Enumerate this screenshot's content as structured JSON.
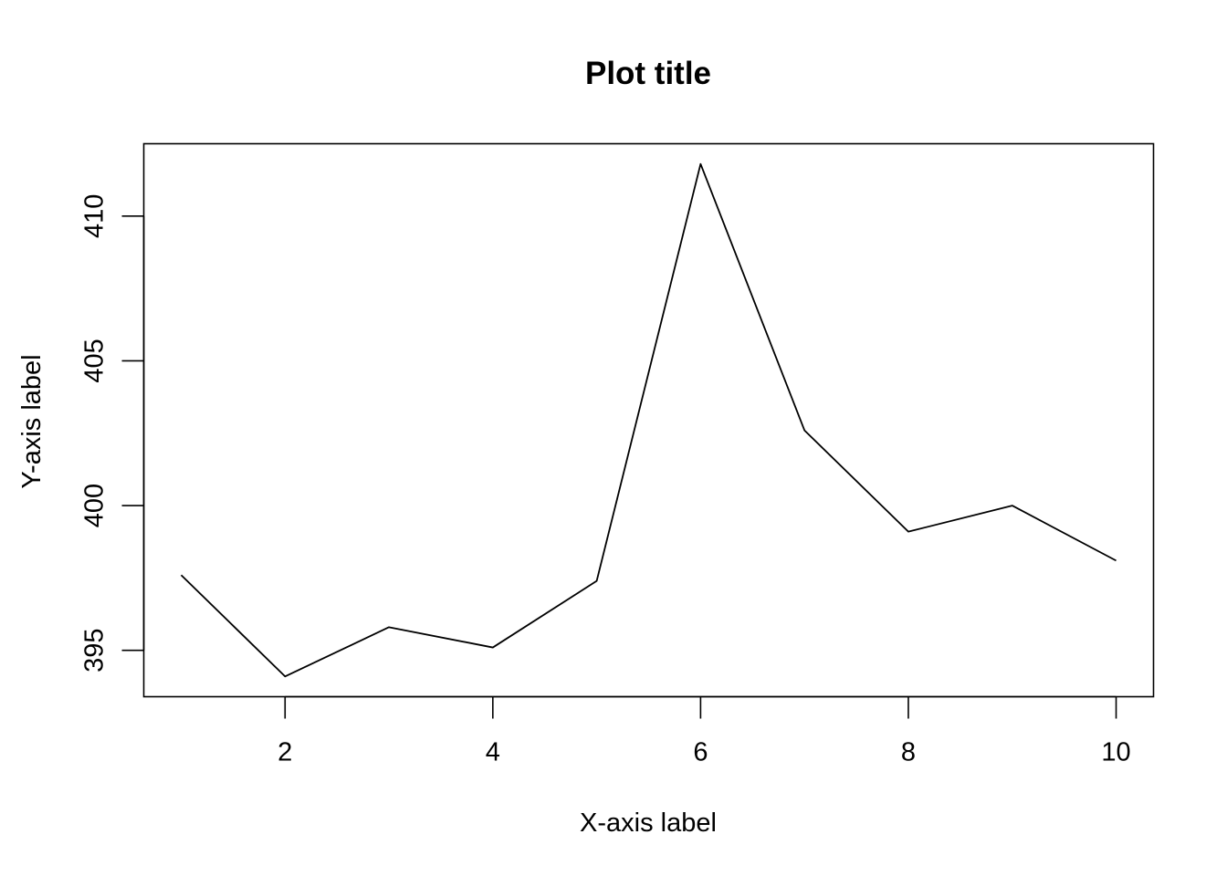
{
  "chart_data": {
    "type": "line",
    "title": "Plot title",
    "xlabel": "X-axis label",
    "ylabel": "Y-axis label",
    "x": [
      1,
      2,
      3,
      4,
      5,
      6,
      7,
      8,
      9,
      10
    ],
    "series": [
      {
        "values": [
          397.6,
          394.1,
          395.8,
          395.1,
          397.4,
          411.8,
          402.6,
          399.1,
          400.0,
          398.1
        ],
        "color": "#000000"
      }
    ],
    "xticks": [
      2,
      4,
      6,
      8,
      10
    ],
    "yticks": [
      395,
      400,
      405,
      410
    ],
    "xlim": [
      0.64,
      10.36
    ],
    "ylim": [
      393.4,
      412.5
    ],
    "grid": false,
    "legend": "none",
    "box": true
  }
}
